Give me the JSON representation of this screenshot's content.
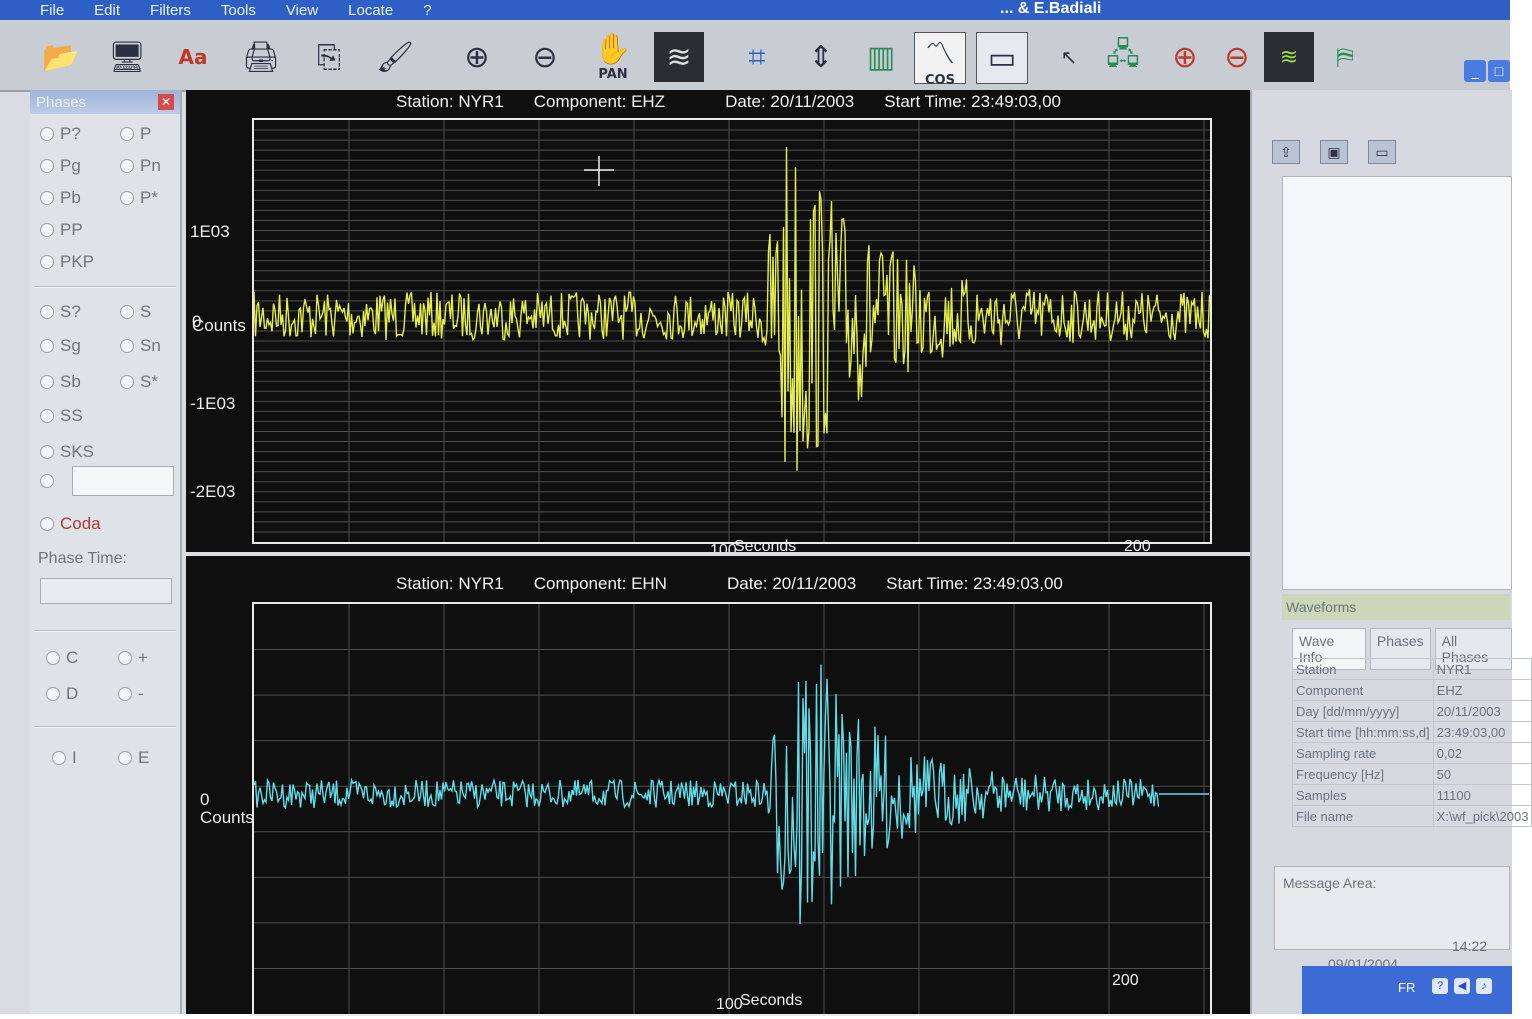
{
  "menubar": {
    "items": [
      "File",
      "Edit",
      "Filters",
      "Tools",
      "View",
      "Locate",
      "?"
    ],
    "app_title": "...   & E.Badiali"
  },
  "toolbar": {
    "buttons": [
      {
        "icon": "open-folder-icon"
      },
      {
        "icon": "monitor-icon"
      },
      {
        "icon": "font-icon"
      },
      {
        "icon": "printer-icon"
      },
      {
        "icon": "export-icon"
      },
      {
        "icon": "paint-icon"
      },
      {
        "icon": "zoom-in-icon"
      },
      {
        "icon": "zoom-out-icon"
      },
      {
        "icon": "pan-hand-icon",
        "label": "PAN"
      },
      {
        "icon": "waveform-icon"
      },
      {
        "icon": "crop-icon"
      },
      {
        "icon": "vertical-arrows-icon"
      },
      {
        "icon": "bar-chart-icon"
      },
      {
        "icon": "cos-chart-icon",
        "label": "COS"
      },
      {
        "icon": "window-icon"
      },
      {
        "icon": "cursor-arrow-icon"
      },
      {
        "icon": "network-icon"
      },
      {
        "icon": "zoom-in-red-icon"
      },
      {
        "icon": "zoom-out-red-icon"
      },
      {
        "icon": "waveform-small-icon"
      },
      {
        "icon": "italy-map-icon"
      }
    ]
  },
  "phases": {
    "title": "Phases",
    "options": [
      "P?",
      "P",
      "Pg",
      "Pn",
      "Pb",
      "P*",
      "PP",
      "PKP",
      "S?",
      "S",
      "Sg",
      "Sn",
      "Sb",
      "S*",
      "SS",
      "SKS",
      "Coda"
    ],
    "phase_time_label": "Phase Time:",
    "polarity": [
      "C",
      "+",
      "D",
      "-",
      "I",
      "E"
    ]
  },
  "plots": [
    {
      "station": "Station: NYR1",
      "component": "Component: EHZ",
      "date": "Date: 20/11/2003",
      "start": "Start Time: 23:49:03,00",
      "y_ticks": [
        "1E03",
        "0",
        "-1E03",
        "-2E03"
      ],
      "y_unit": "Counts",
      "x_ticks": [
        "100",
        "200"
      ],
      "x_unit": "Seconds",
      "color": "#e4ee4a"
    },
    {
      "station": "Station: NYR1",
      "component": "Component: EHN",
      "date": "Date: 20/11/2003",
      "start": "Start Time: 23:49:03,00",
      "y_ticks": [
        "0"
      ],
      "y_unit": "Counts",
      "x_ticks": [
        "100",
        "200"
      ],
      "x_unit": "Seconds",
      "color": "#62dce6"
    }
  ],
  "right_panel": {
    "waveforms_title": "Waveforms",
    "tabs": [
      "Wave Info",
      "Phases",
      "All Phases"
    ],
    "info": [
      {
        "k": "Station",
        "v": "NYR1"
      },
      {
        "k": "Component",
        "v": "EHZ"
      },
      {
        "k": "Day [dd/mm/yyyy]",
        "v": "20/11/2003"
      },
      {
        "k": "Start time [hh:mm:ss,d]",
        "v": "23:49:03,00"
      },
      {
        "k": "Sampling rate",
        "v": "0,02"
      },
      {
        "k": "Frequency [Hz]",
        "v": "50"
      },
      {
        "k": "Samples",
        "v": "11100"
      },
      {
        "k": "File name",
        "v": "X:\\wf_pick\\2003"
      }
    ],
    "message_area": "Message Area:",
    "clock_time": "14:22",
    "clock_date": "09/01/2004",
    "taskbar_lang": "FR"
  }
}
